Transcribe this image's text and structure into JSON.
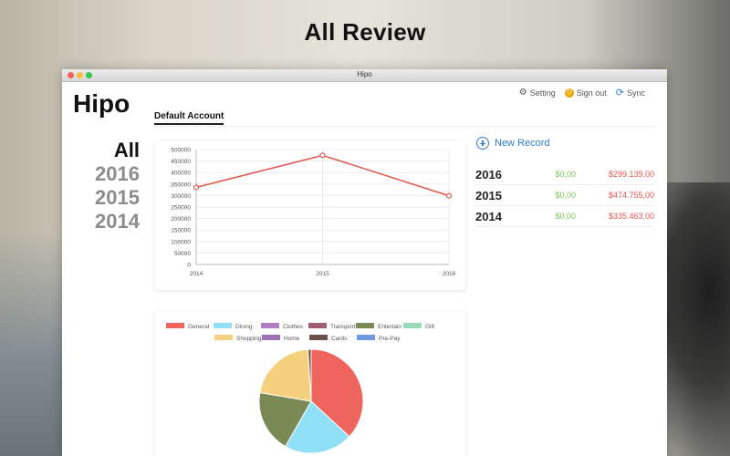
{
  "headline": "All Review",
  "window_title": "Hipo",
  "app_logo": "Hipo",
  "top_actions": {
    "setting": "Setting",
    "signout": "Sign out",
    "sync": "Sync"
  },
  "tab": "Default Account",
  "years": [
    "All",
    "2016",
    "2015",
    "2014"
  ],
  "new_record": "New Record",
  "records": [
    {
      "year": "2016",
      "income": "$0,00",
      "expense": "$299.139,00"
    },
    {
      "year": "2015",
      "income": "$0,00",
      "expense": "$474.755,00"
    },
    {
      "year": "2014",
      "income": "$0,00",
      "expense": "$335.463,00"
    }
  ],
  "chart_data": [
    {
      "type": "line",
      "x": [
        "2014",
        "2015",
        "2016"
      ],
      "series": [
        {
          "values": [
            335463,
            474755,
            299139
          ],
          "color": "#e2574c"
        }
      ],
      "yticks": [
        0,
        50000,
        100000,
        150000,
        200000,
        250000,
        300000,
        350000,
        400000,
        450000,
        500000
      ],
      "ylim": [
        0,
        500000
      ],
      "grid": true
    },
    {
      "type": "pie",
      "legend_position": "top",
      "labels": [
        "General",
        "Dining",
        "Clothes",
        "Transport",
        "Entertain",
        "Gift",
        "Shopping",
        "Home",
        "Cards",
        "Pre-Pay"
      ],
      "colors": [
        "#f0645e",
        "#8fe0f6",
        "#b07dc4",
        "#a05e6e",
        "#7a8a55",
        "#9adab9",
        "#f5d07f",
        "#a070b8",
        "#6b5048",
        "#6e9ae4"
      ],
      "values": [
        38,
        22,
        0,
        0,
        20,
        0,
        22,
        0,
        1,
        0
      ]
    }
  ]
}
